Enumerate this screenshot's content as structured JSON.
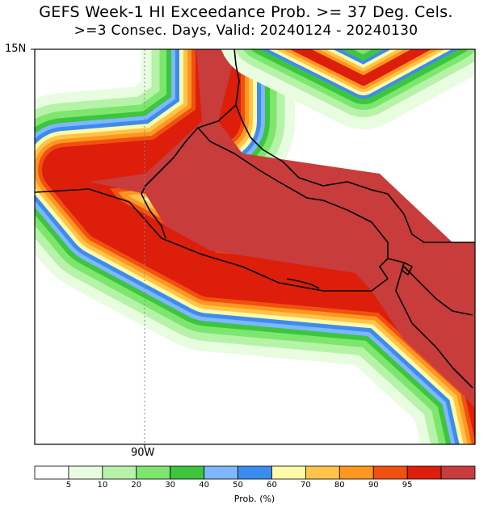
{
  "header": {
    "title": "GEFS Week-1 HI Exceedance Prob. >= 37 Deg. Cels.",
    "subtitle": ">=3 Consec. Days, Valid: 20240124 - 20240130"
  },
  "axes": {
    "lat_label": "15N",
    "lon_label": "90W"
  },
  "colorbar": {
    "unit_label": "Prob. (%)",
    "tick_labels": [
      "5",
      "10",
      "20",
      "30",
      "40",
      "50",
      "60",
      "70",
      "80",
      "90",
      "95"
    ],
    "colors": [
      "#ffffff",
      "#e8fce0",
      "#b6f3a8",
      "#7ee66e",
      "#3dc53d",
      "#7eb6ff",
      "#3c8cf0",
      "#fffaa8",
      "#ffc448",
      "#ff9620",
      "#f05010",
      "#dc1e0a",
      "#c83c3c"
    ]
  },
  "map": {
    "region": "Central America (Guatemala / El Salvador / Honduras / Nicaragua)",
    "max_probability_band": "95"
  }
}
